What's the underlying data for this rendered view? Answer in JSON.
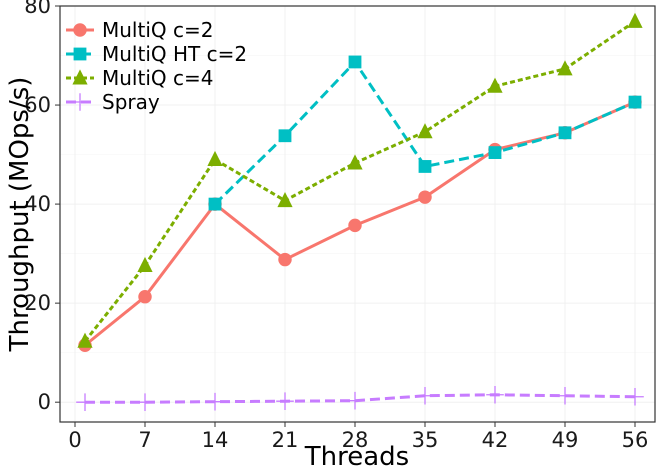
{
  "chart_data": {
    "type": "line",
    "title": "",
    "xlabel": "Threads",
    "ylabel": "Throughput (MOps/s)",
    "x": [
      0,
      7,
      14,
      21,
      28,
      35,
      42,
      49,
      56
    ],
    "xticks": [
      "0",
      "7",
      "14",
      "21",
      "28",
      "35",
      "42",
      "49",
      "56"
    ],
    "yticks": [
      "0",
      "20",
      "40",
      "60",
      "80"
    ],
    "xlim": [
      -1.5,
      58
    ],
    "ylim": [
      -4,
      80
    ],
    "legend_position": "top-left",
    "grid": true,
    "series": [
      {
        "name": "MultiQ c=2",
        "color": "#f8766d",
        "line_style": "solid",
        "marker": "circle",
        "x": [
          1,
          7,
          14,
          21,
          28,
          35,
          42,
          49,
          56
        ],
        "values": [
          11.5,
          21.3,
          40,
          28.8,
          35.7,
          41.4,
          51,
          54.4,
          60.6
        ]
      },
      {
        "name": "MultiQ HT c=2",
        "color": "#00bfc4",
        "line_style": "dashed",
        "marker": "square",
        "x": [
          14,
          21,
          28,
          35,
          42,
          49,
          56
        ],
        "values": [
          40,
          53.8,
          68.7,
          47.6,
          50.4,
          54.4,
          60.6
        ]
      },
      {
        "name": "MultiQ c=4",
        "color": "#7cae00",
        "line_style": "dotted",
        "marker": "triangle",
        "x": [
          1,
          7,
          14,
          21,
          28,
          35,
          42,
          49,
          56
        ],
        "values": [
          12.3,
          27.6,
          49,
          40.7,
          48.3,
          54.6,
          63.8,
          67.3,
          76.9
        ]
      },
      {
        "name": "Spray",
        "color": "#c77cff",
        "line_style": "dashed",
        "marker": "plus",
        "x": [
          1,
          7,
          14,
          21,
          28,
          35,
          42,
          49,
          56
        ],
        "values": [
          0,
          0,
          0.1,
          0.2,
          0.3,
          1.3,
          1.5,
          1.3,
          1.1
        ]
      }
    ]
  }
}
